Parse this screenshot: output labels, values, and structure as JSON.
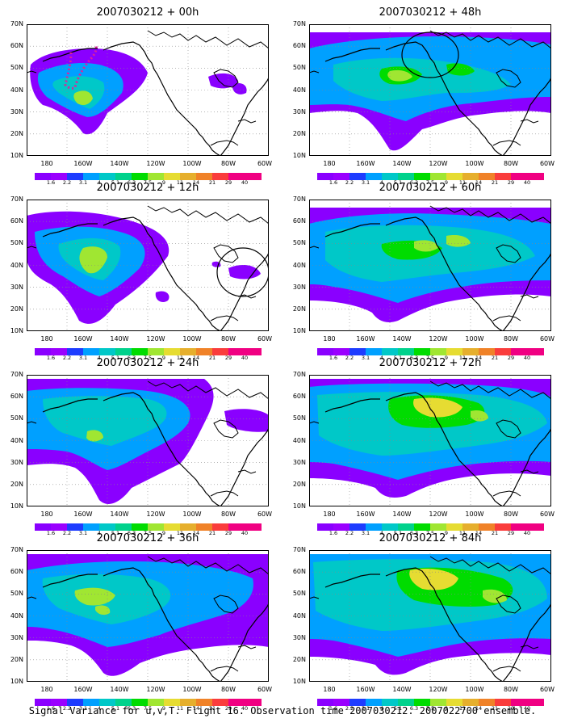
{
  "panels": [
    {
      "base": "2007030212",
      "plus": "+",
      "lead": "00h"
    },
    {
      "base": "2007030212",
      "plus": "+",
      "lead": "48h"
    },
    {
      "base": "2007030212",
      "plus": "+",
      "lead": "12h"
    },
    {
      "base": "2007030212",
      "plus": "+",
      "lead": "60h"
    },
    {
      "base": "2007030212",
      "plus": "+",
      "lead": "24h"
    },
    {
      "base": "2007030212",
      "plus": "+",
      "lead": "72h"
    },
    {
      "base": "2007030212",
      "plus": "+",
      "lead": "36h"
    },
    {
      "base": "2007030212",
      "plus": "+",
      "lead": "84h"
    }
  ],
  "y_ticks": [
    "70N",
    "60N",
    "50N",
    "40N",
    "30N",
    "20N",
    "10N"
  ],
  "x_ticks": [
    "180",
    "160W",
    "140W",
    "120W",
    "100W",
    "80W",
    "60W"
  ],
  "colorbar": {
    "labels": [
      "1.6",
      "2.2",
      "3.1",
      "4",
      "5.1",
      "6.3",
      "7.5",
      "9",
      "11",
      "14",
      "21",
      "29",
      "40"
    ],
    "colors": [
      "#8a00ff",
      "#9a00ff",
      "#1e3cff",
      "#00a0ff",
      "#00c8c8",
      "#00d28c",
      "#00dc00",
      "#a0e632",
      "#e6dc32",
      "#e6af2d",
      "#f08228",
      "#fa3c3c",
      "#f00082"
    ]
  },
  "caption": "Signal Variance for u,v,T. Flight 16. Observation time 2007030212. 2007022700 ensemble."
}
